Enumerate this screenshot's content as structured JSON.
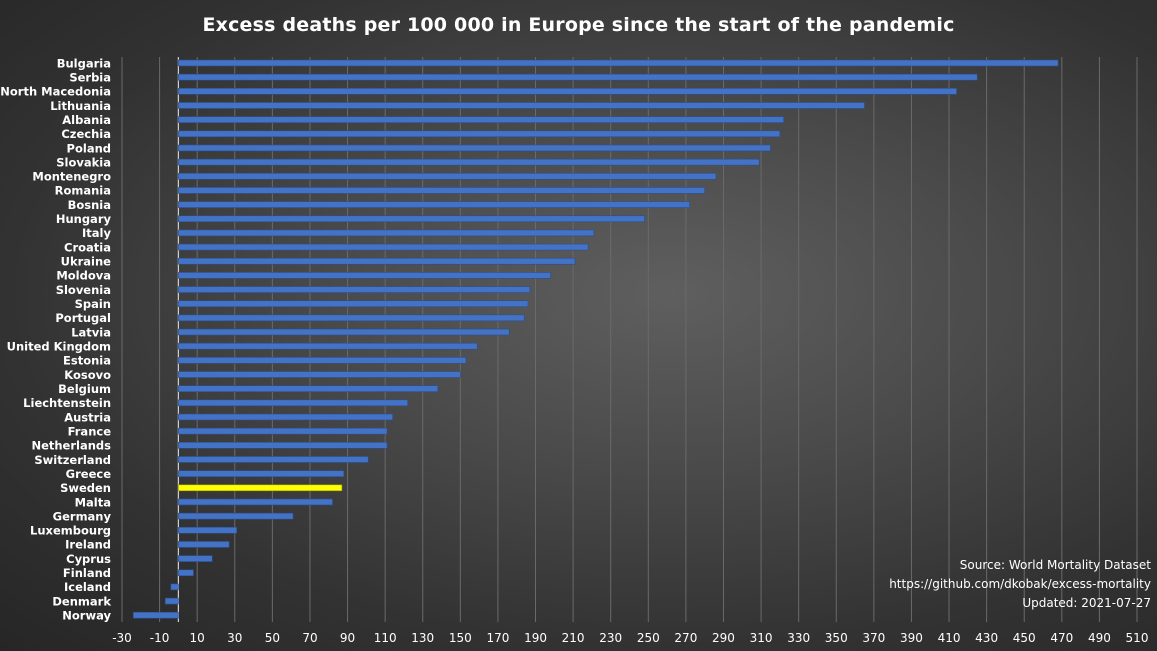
{
  "chart_data": {
    "type": "bar",
    "orientation": "horizontal",
    "title": "Excess deaths per 100 000 in Europe since the start of the pandemic",
    "xlim": [
      -30,
      510
    ],
    "xticks": [
      -30,
      -10,
      10,
      30,
      50,
      70,
      90,
      110,
      130,
      150,
      170,
      190,
      210,
      230,
      250,
      270,
      290,
      310,
      330,
      350,
      370,
      390,
      410,
      430,
      450,
      470,
      490,
      510
    ],
    "grid": true,
    "bar_color": "#4472C4",
    "highlight_color": "#FFFF00",
    "highlight": "Sweden",
    "categories": [
      "Bulgaria",
      "Serbia",
      "North Macedonia",
      "Lithuania",
      "Albania",
      "Czechia",
      "Poland",
      "Slovakia",
      "Montenegro",
      "Romania",
      "Bosnia",
      "Hungary",
      "Italy",
      "Croatia",
      "Ukraine",
      "Moldova",
      "Slovenia",
      "Spain",
      "Portugal",
      "Latvia",
      "United Kingdom",
      "Estonia",
      "Kosovo",
      "Belgium",
      "Liechtenstein",
      "Austria",
      "France",
      "Netherlands",
      "Switzerland",
      "Greece",
      "Sweden",
      "Malta",
      "Germany",
      "Luxembourg",
      "Ireland",
      "Cyprus",
      "Finland",
      "Iceland",
      "Denmark",
      "Norway"
    ],
    "values": [
      468,
      425,
      414,
      365,
      322,
      320,
      315,
      309,
      286,
      280,
      272,
      248,
      221,
      218,
      211,
      198,
      187,
      186,
      184,
      176,
      159,
      153,
      150,
      138,
      122,
      114,
      111,
      111,
      101,
      88,
      87,
      82,
      61,
      31,
      27,
      18,
      8,
      -4,
      -7,
      -24
    ]
  },
  "source": {
    "line1": "Source: World Mortality Dataset",
    "line2": "https://github.com/dkobak/excess-mortality",
    "line3": "Updated: 2021-07-27"
  }
}
